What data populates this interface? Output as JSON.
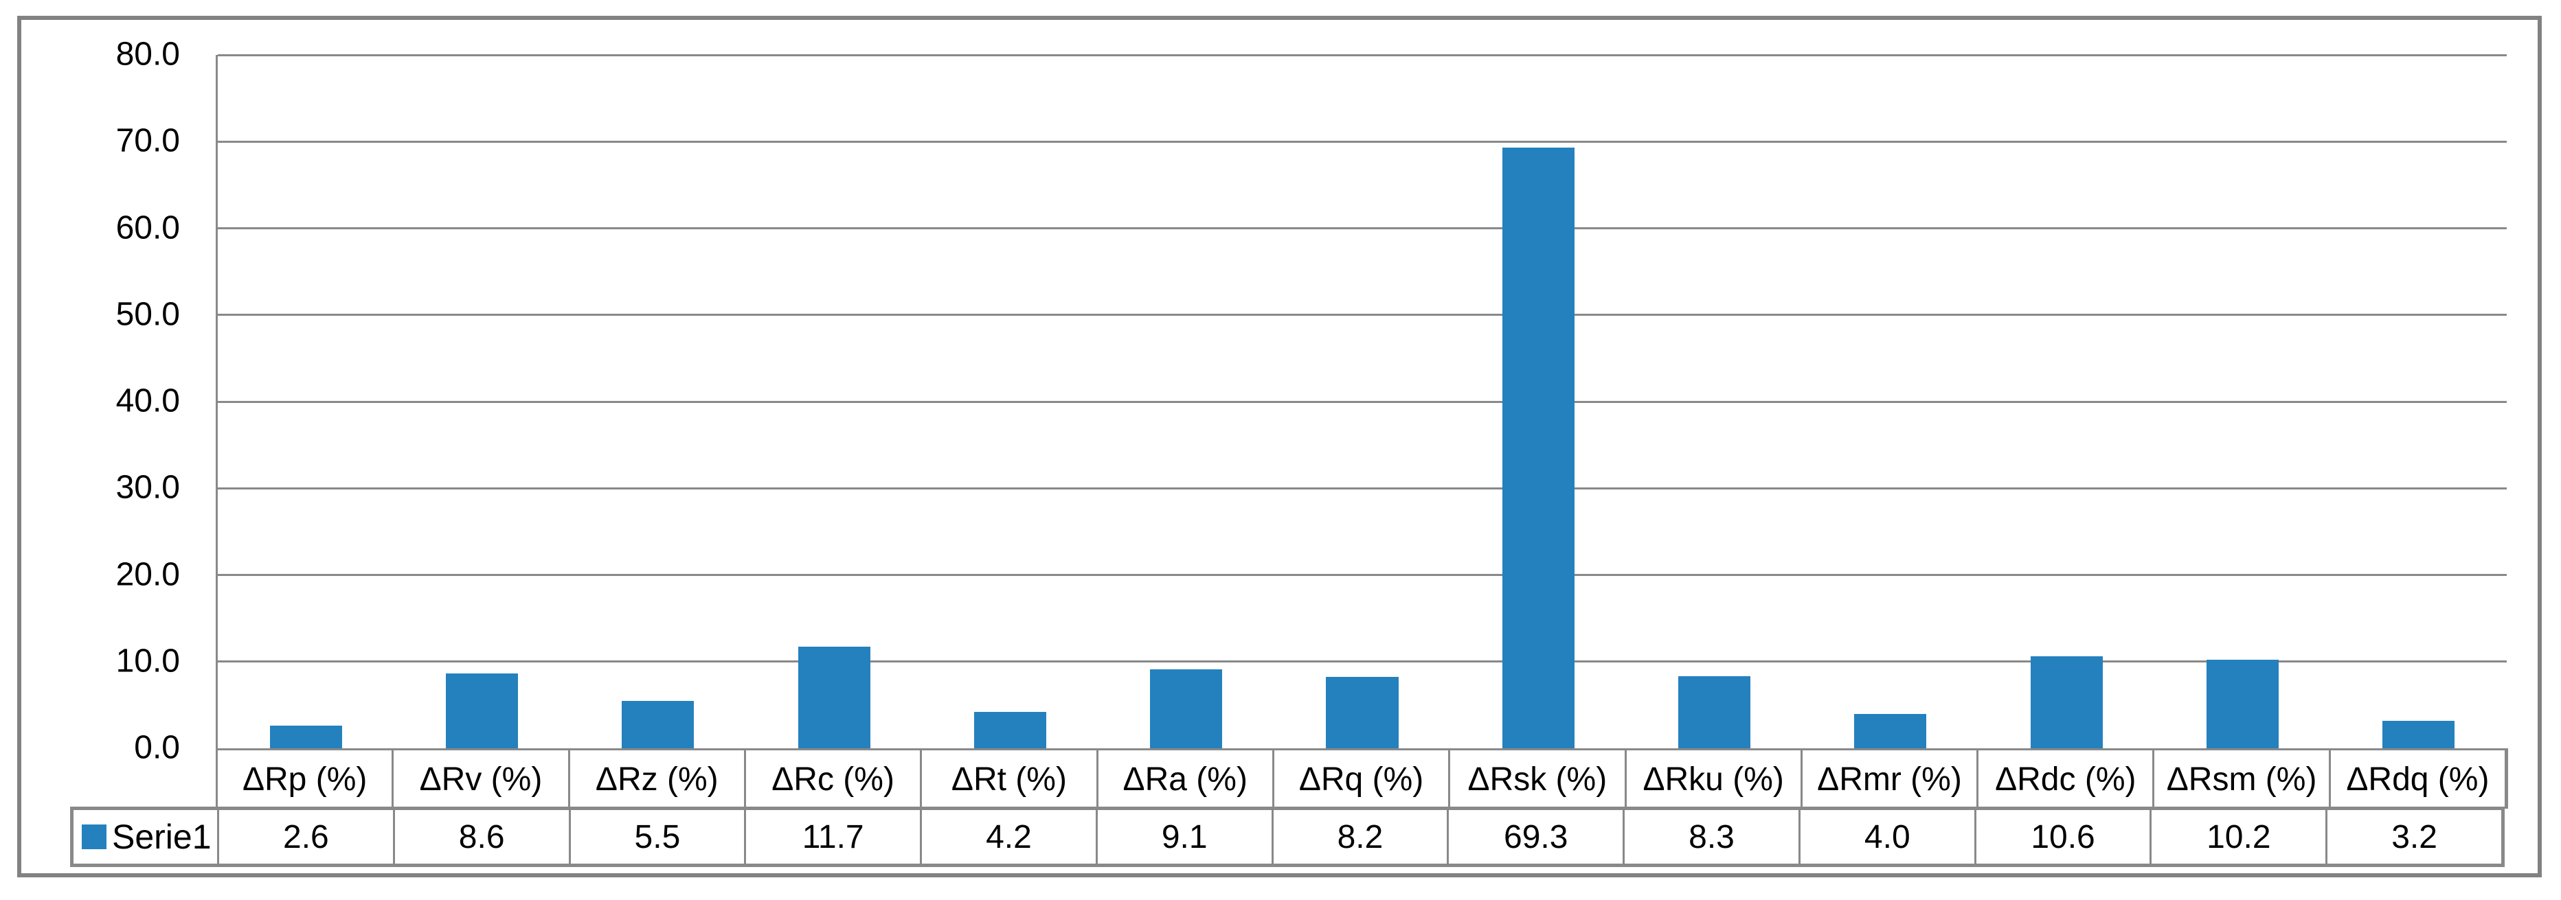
{
  "chart_data": {
    "type": "bar",
    "title": "",
    "xlabel": "",
    "ylabel": "",
    "categories": [
      "ΔRp (%)",
      "ΔRv (%)",
      "ΔRz (%)",
      "ΔRc (%)",
      "ΔRt (%)",
      "ΔRa (%)",
      "ΔRq (%)",
      "ΔRsk (%)",
      "ΔRku (%)",
      "ΔRmr (%)",
      "ΔRdc (%)",
      "ΔRsm (%)",
      "ΔRdq (%)"
    ],
    "series": [
      {
        "name": "Serie1",
        "values": [
          2.6,
          8.6,
          5.5,
          11.7,
          4.2,
          9.1,
          8.2,
          69.3,
          8.3,
          4.0,
          10.6,
          10.2,
          3.2
        ],
        "value_labels": [
          "2.6",
          "8.6",
          "5.5",
          "11.7",
          "4.2",
          "9.1",
          "8.2",
          "69.3",
          "8.3",
          "4.0",
          "10.6",
          "10.2",
          "3.2"
        ]
      }
    ],
    "ylim": [
      0,
      80
    ],
    "ytick_step": 10,
    "ytick_labels": [
      "80.0",
      "70.0",
      "60.0",
      "50.0",
      "40.0",
      "30.0",
      "20.0",
      "10.0",
      "0.0"
    ],
    "grid": true,
    "legend_position": "data-table-left"
  },
  "colors": {
    "bar": "#2481BE",
    "gridline": "#898989",
    "frame_border": "#828282",
    "text": "#000000",
    "background": "#FFFFFF"
  }
}
